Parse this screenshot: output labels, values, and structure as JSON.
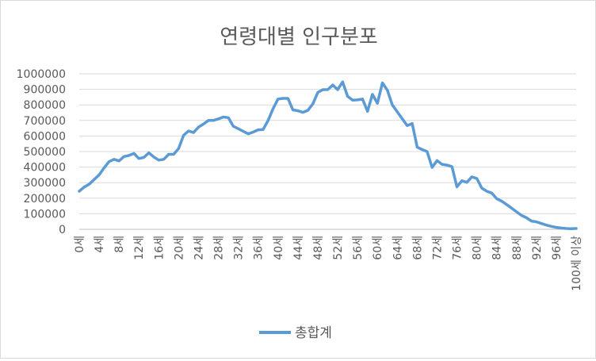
{
  "chart_data": {
    "type": "line",
    "title": "연령대별 인구분포",
    "xlabel": "",
    "ylabel": "",
    "ylim": [
      0,
      1000000
    ],
    "yticks": [
      0,
      100000,
      200000,
      300000,
      400000,
      500000,
      600000,
      700000,
      800000,
      900000,
      1000000
    ],
    "ytick_labels": [
      "0",
      "100000",
      "200000",
      "300000",
      "400000",
      "500000",
      "600000",
      "700000",
      "800000",
      "900000",
      "1000000"
    ],
    "grid": true,
    "legend": "bottom",
    "categories": [
      "0세",
      "1세",
      "2세",
      "3세",
      "4세",
      "5세",
      "6세",
      "7세",
      "8세",
      "9세",
      "10세",
      "11세",
      "12세",
      "13세",
      "14세",
      "15세",
      "16세",
      "17세",
      "18세",
      "19세",
      "20세",
      "21세",
      "22세",
      "23세",
      "24세",
      "25세",
      "26세",
      "27세",
      "28세",
      "29세",
      "30세",
      "31세",
      "32세",
      "33세",
      "34세",
      "35세",
      "36세",
      "37세",
      "38세",
      "39세",
      "40세",
      "41세",
      "42세",
      "43세",
      "44세",
      "45세",
      "46세",
      "47세",
      "48세",
      "49세",
      "50세",
      "51세",
      "52세",
      "53세",
      "54세",
      "55세",
      "56세",
      "57세",
      "58세",
      "59세",
      "60세",
      "61세",
      "62세",
      "63세",
      "64세",
      "65세",
      "66세",
      "67세",
      "68세",
      "69세",
      "70세",
      "71세",
      "72세",
      "73세",
      "74세",
      "75세",
      "76세",
      "77세",
      "78세",
      "79세",
      "80세",
      "81세",
      "82세",
      "83세",
      "84세",
      "85세",
      "86세",
      "87세",
      "88세",
      "89세",
      "90세",
      "91세",
      "92세",
      "93세",
      "94세",
      "95세",
      "96세",
      "97세",
      "98세",
      "99세",
      "100세 이상"
    ],
    "tick_labels": [
      "0세",
      "4세",
      "8세",
      "12세",
      "16세",
      "20세",
      "24세",
      "28세",
      "32세",
      "36세",
      "40세",
      "44세",
      "48세",
      "52세",
      "56세",
      "60세",
      "64세",
      "68세",
      "72세",
      "76세",
      "80세",
      "84세",
      "88세",
      "92세",
      "96세",
      "100세 이상"
    ],
    "tick_indices": [
      0,
      4,
      8,
      12,
      16,
      20,
      24,
      28,
      32,
      36,
      40,
      44,
      48,
      52,
      56,
      60,
      64,
      68,
      72,
      76,
      80,
      84,
      88,
      92,
      96,
      100
    ],
    "series": [
      {
        "name": "총합계",
        "color": "#5b9bd5",
        "values": [
          245000,
          272000,
          290000,
          320000,
          350000,
          395000,
          435000,
          450000,
          440000,
          468000,
          475000,
          488000,
          455000,
          462000,
          492000,
          465000,
          445000,
          450000,
          482000,
          482000,
          520000,
          605000,
          632000,
          622000,
          657000,
          677000,
          700000,
          700000,
          710000,
          722000,
          718000,
          662000,
          647000,
          630000,
          614000,
          625000,
          640000,
          642000,
          700000,
          775000,
          838000,
          842000,
          842000,
          768000,
          762000,
          752000,
          765000,
          806000,
          880000,
          898000,
          898000,
          928000,
          898000,
          948000,
          855000,
          830000,
          832000,
          838000,
          758000,
          868000,
          810000,
          942000,
          895000,
          800000,
          755000,
          710000,
          667000,
          680000,
          528000,
          513000,
          500000,
          398000,
          442000,
          418000,
          413000,
          403000,
          273000,
          312000,
          302000,
          337000,
          327000,
          265000,
          245000,
          233000,
          197000,
          181000,
          159000,
          136000,
          112000,
          90000,
          74000,
          53000,
          48000,
          37000,
          27000,
          19000,
          12000,
          8000,
          5000,
          4000,
          5000
        ]
      }
    ]
  }
}
